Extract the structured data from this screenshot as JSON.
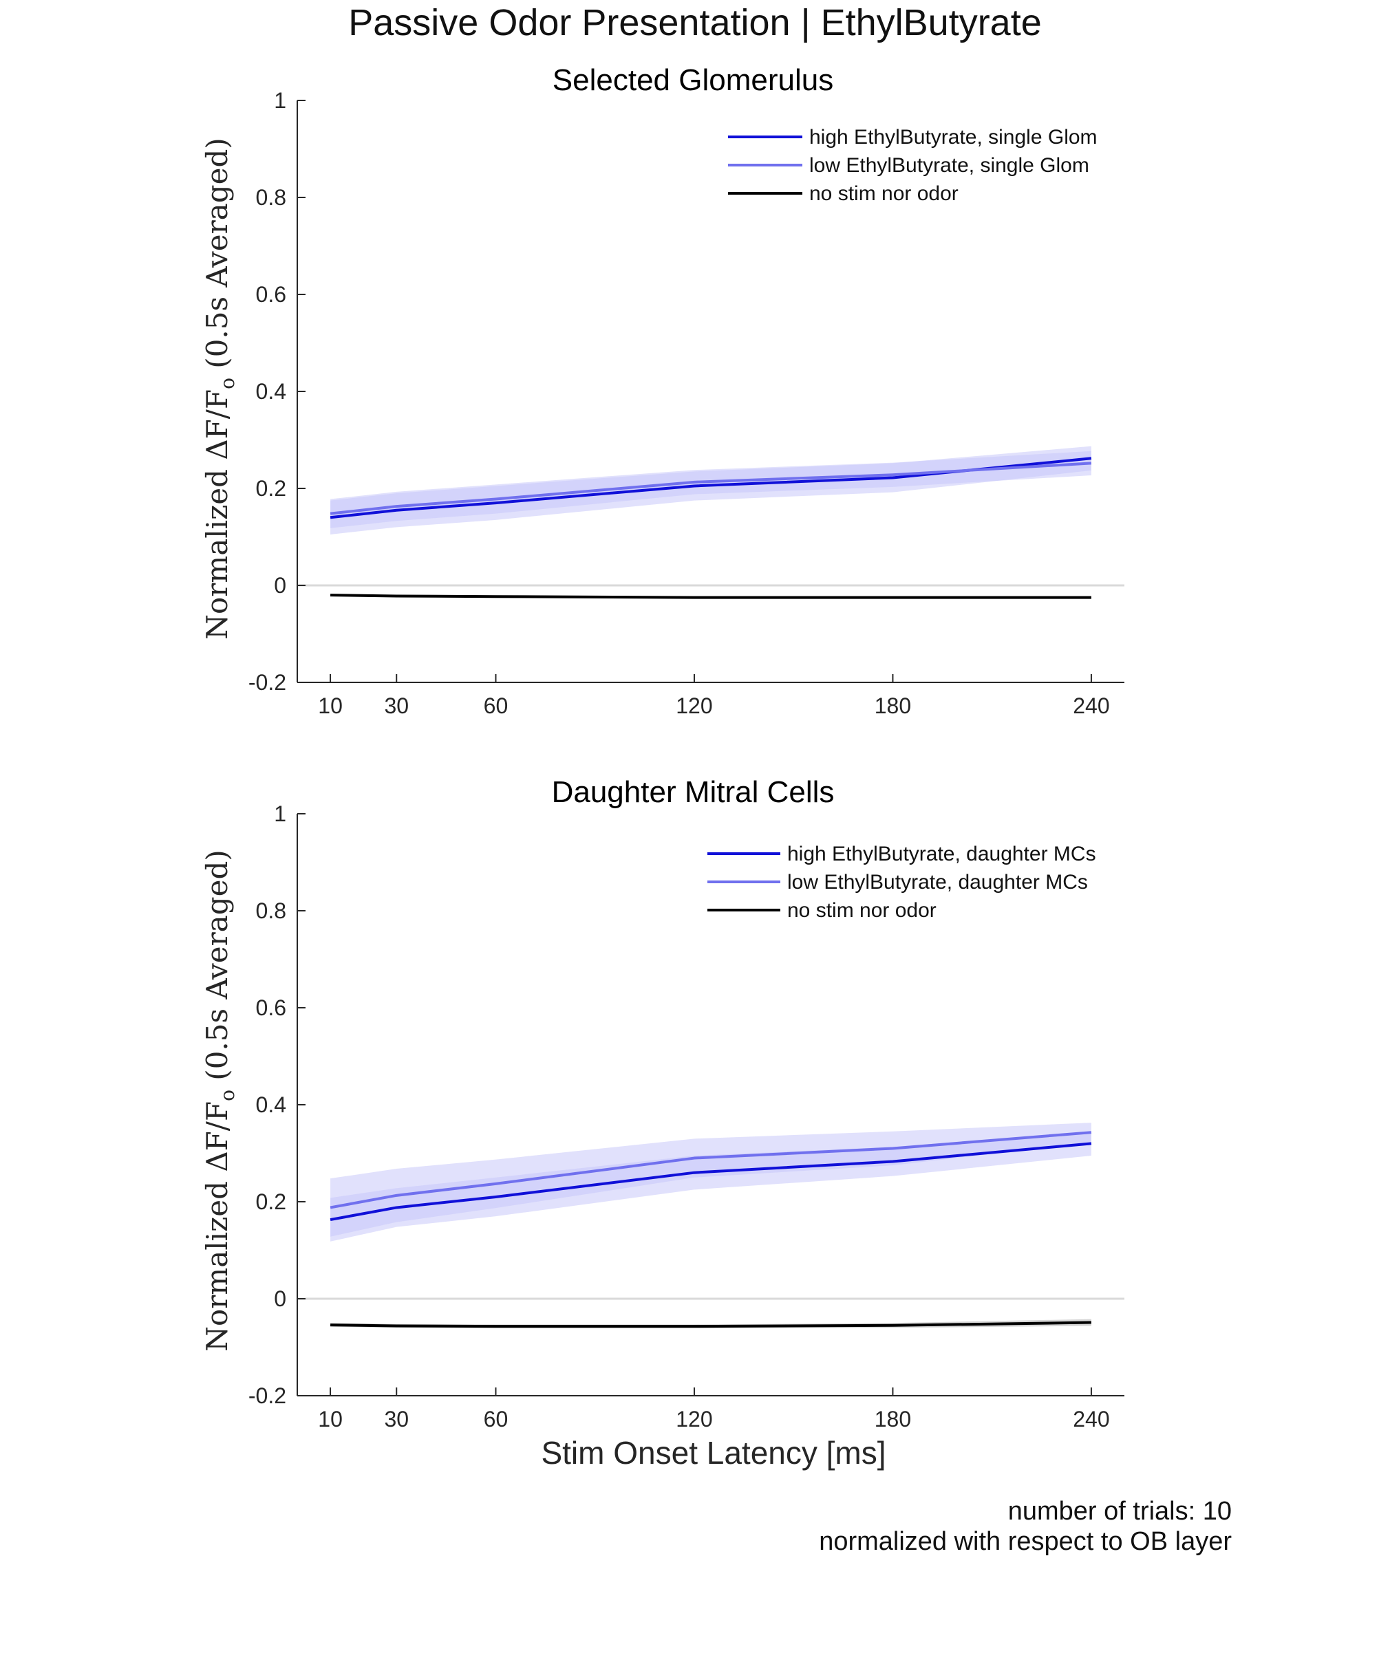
{
  "figure": {
    "title": "Passive Odor Presentation | EthylButyrate",
    "xlabel": "Stim Onset Latency [ms]",
    "ylabel_prefix": "Normalized ΔF/F",
    "ylabel_sub": "o",
    "ylabel_suffix": " (0.5s Averaged)",
    "footnote_line1": "number of trials: 10",
    "footnote_line2": "normalized with respect to OB layer"
  },
  "colors": {
    "high": "#1010d8",
    "low": "#7070ee",
    "none": "#000000",
    "band": "#c8c8fa",
    "band_none": "#bbbbbb",
    "axis": "#262626",
    "zero_line": "#d9d9d9"
  },
  "chart_data": [
    {
      "type": "line",
      "title": "Selected Glomerulus",
      "x": [
        10,
        30,
        60,
        120,
        180,
        240
      ],
      "xticks": [
        "10",
        "30",
        "60",
        "120",
        "180",
        "240"
      ],
      "xlim": [
        0,
        250
      ],
      "ylim": [
        -0.2,
        1
      ],
      "yticks": [
        -0.2,
        0,
        0.2,
        0.4,
        0.6,
        0.8,
        1
      ],
      "ytick_labels": [
        "-0.2",
        "0",
        "0.2",
        "0.4",
        "0.6",
        "0.8",
        "1"
      ],
      "zero_line": true,
      "legend_position": "top-right",
      "series": [
        {
          "name": "high EthylButyrate, single Glom",
          "key": "high",
          "values": [
            0.14,
            0.155,
            0.17,
            0.205,
            0.222,
            0.262
          ],
          "err": [
            0.035,
            0.035,
            0.035,
            0.03,
            0.03,
            0.025
          ]
        },
        {
          "name": "low EthylButyrate, single Glom",
          "key": "low",
          "values": [
            0.148,
            0.163,
            0.178,
            0.213,
            0.228,
            0.252
          ],
          "err": [
            0.03,
            0.03,
            0.03,
            0.025,
            0.025,
            0.025
          ]
        },
        {
          "name": "no stim nor odor",
          "key": "none",
          "values": [
            -0.02,
            -0.022,
            -0.023,
            -0.025,
            -0.025,
            -0.025
          ],
          "err": [
            0.002,
            0.002,
            0.002,
            0.002,
            0.002,
            0.002
          ]
        }
      ]
    },
    {
      "type": "line",
      "title": "Daughter Mitral Cells",
      "x": [
        10,
        30,
        60,
        120,
        180,
        240
      ],
      "xticks": [
        "10",
        "30",
        "60",
        "120",
        "180",
        "240"
      ],
      "xlim": [
        0,
        250
      ],
      "ylim": [
        -0.2,
        1
      ],
      "yticks": [
        -0.2,
        0,
        0.2,
        0.4,
        0.6,
        0.8,
        1
      ],
      "ytick_labels": [
        "-0.2",
        "0",
        "0.2",
        "0.4",
        "0.6",
        "0.8",
        "1"
      ],
      "zero_line": true,
      "legend_position": "top-right",
      "series": [
        {
          "name": "high EthylButyrate, daughter MCs",
          "key": "high",
          "values": [
            0.163,
            0.188,
            0.21,
            0.26,
            0.283,
            0.32
          ],
          "err": [
            0.045,
            0.04,
            0.04,
            0.035,
            0.03,
            0.025
          ]
        },
        {
          "name": "low EthylButyrate, daughter MCs",
          "key": "low",
          "values": [
            0.188,
            0.213,
            0.237,
            0.29,
            0.31,
            0.343
          ],
          "err": [
            0.06,
            0.055,
            0.05,
            0.04,
            0.035,
            0.02
          ]
        },
        {
          "name": "no stim nor odor",
          "key": "none",
          "values": [
            -0.054,
            -0.056,
            -0.057,
            -0.057,
            -0.055,
            -0.049
          ],
          "err": [
            0.004,
            0.004,
            0.004,
            0.004,
            0.005,
            0.007
          ]
        }
      ]
    }
  ]
}
